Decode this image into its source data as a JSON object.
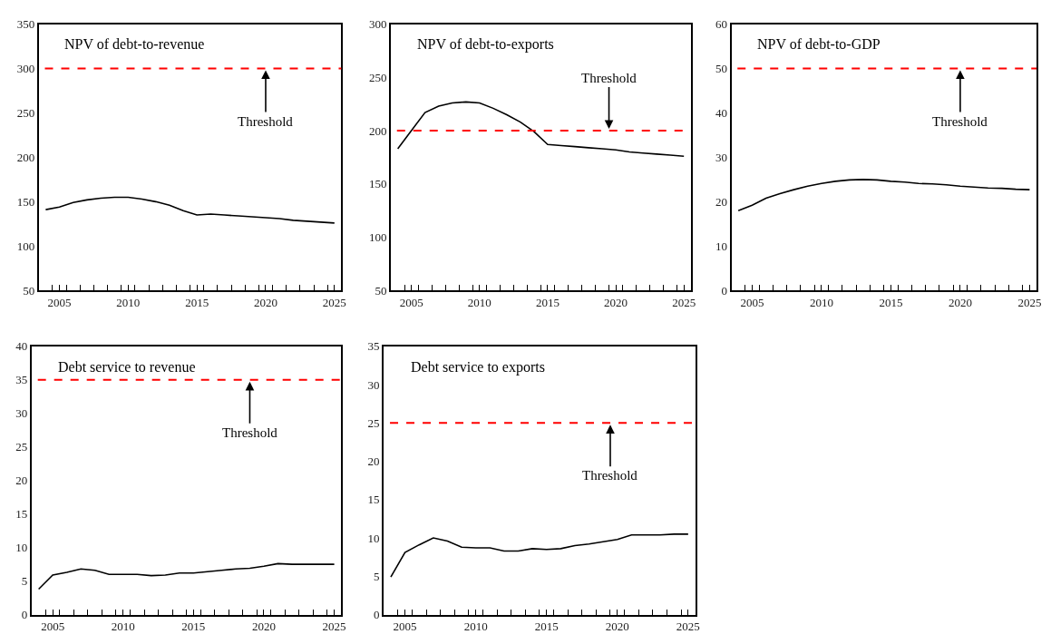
{
  "chart_data": [
    {
      "type": "line",
      "title": "NPV of debt-to-revenue",
      "x": [
        2004,
        2005,
        2006,
        2007,
        2008,
        2009,
        2010,
        2011,
        2012,
        2013,
        2014,
        2015,
        2016,
        2017,
        2018,
        2019,
        2020,
        2021,
        2022,
        2023,
        2024,
        2025
      ],
      "series": [
        {
          "color": "#000000",
          "values": [
            141,
            144,
            149,
            152,
            154,
            155,
            155,
            153,
            150,
            146,
            140,
            135,
            136,
            135,
            134,
            133,
            132,
            131,
            129,
            128,
            127,
            126
          ]
        }
      ],
      "xlim": [
        2003.5,
        2025.5
      ],
      "xticks": [
        {
          "value": 2004.5,
          "label": null
        },
        2005,
        {
          "value": 2005.5,
          "label": null
        },
        {
          "value": 2006.5,
          "label": null
        },
        {
          "value": 2007.5,
          "label": null
        },
        {
          "value": 2008.5,
          "label": null
        },
        {
          "value": 2009.5,
          "label": null
        },
        2010,
        {
          "value": 2010.5,
          "label": null
        },
        {
          "value": 2011.5,
          "label": null
        },
        {
          "value": 2012.5,
          "label": null
        },
        {
          "value": 2013.5,
          "label": null
        },
        {
          "value": 2014.5,
          "label": null
        },
        2015,
        {
          "value": 2015.5,
          "label": null
        },
        {
          "value": 2016.5,
          "label": null
        },
        {
          "value": 2017.5,
          "label": null
        },
        {
          "value": 2018.5,
          "label": null
        },
        {
          "value": 2019.5,
          "label": null
        },
        2020,
        {
          "value": 2020.5,
          "label": null
        },
        {
          "value": 2021.5,
          "label": null
        },
        {
          "value": 2022.5,
          "label": null
        },
        {
          "value": 2023.5,
          "label": null
        },
        {
          "value": 2024.5,
          "label": null
        },
        2025
      ],
      "ylim": [
        50,
        350
      ],
      "yticks": [
        50,
        100,
        150,
        200,
        250,
        300,
        350
      ],
      "ref_lines": [
        {
          "axis": "y",
          "value": 300,
          "color": "#ff0000",
          "line_style": "dashed"
        }
      ],
      "annotations": [
        {
          "text": "Threshold",
          "x": 2020,
          "y": 300
        }
      ]
    },
    {
      "type": "line",
      "title": "NPV of debt-to-exports",
      "x": [
        2004,
        2005,
        2006,
        2007,
        2008,
        2009,
        2010,
        2011,
        2012,
        2013,
        2014,
        2015,
        2016,
        2017,
        2018,
        2019,
        2020,
        2021,
        2022,
        2023,
        2024,
        2025
      ],
      "series": [
        {
          "color": "#000000",
          "values": [
            183,
            200,
            217,
            223,
            226,
            227,
            226,
            221,
            215,
            208,
            199,
            187,
            186,
            185,
            184,
            183,
            182,
            180,
            179,
            178,
            177,
            176
          ]
        }
      ],
      "xlim": [
        2003.5,
        2025.5
      ],
      "xticks": [
        {
          "value": 2004.5,
          "label": null
        },
        2005,
        {
          "value": 2005.5,
          "label": null
        },
        {
          "value": 2006.5,
          "label": null
        },
        {
          "value": 2007.5,
          "label": null
        },
        {
          "value": 2008.5,
          "label": null
        },
        {
          "value": 2009.5,
          "label": null
        },
        2010,
        {
          "value": 2010.5,
          "label": null
        },
        {
          "value": 2011.5,
          "label": null
        },
        {
          "value": 2012.5,
          "label": null
        },
        {
          "value": 2013.5,
          "label": null
        },
        {
          "value": 2014.5,
          "label": null
        },
        2015,
        {
          "value": 2015.5,
          "label": null
        },
        {
          "value": 2016.5,
          "label": null
        },
        {
          "value": 2017.5,
          "label": null
        },
        {
          "value": 2018.5,
          "label": null
        },
        {
          "value": 2019.5,
          "label": null
        },
        2020,
        {
          "value": 2020.5,
          "label": null
        },
        {
          "value": 2021.5,
          "label": null
        },
        {
          "value": 2022.5,
          "label": null
        },
        {
          "value": 2023.5,
          "label": null
        },
        {
          "value": 2024.5,
          "label": null
        },
        2025
      ],
      "ylim": [
        50,
        300
      ],
      "yticks": [
        50,
        100,
        150,
        200,
        250,
        300
      ],
      "ref_lines": [
        {
          "axis": "y",
          "value": 200,
          "color": "#ff0000",
          "line_style": "dashed"
        }
      ],
      "annotations": [
        {
          "text": "Threshold",
          "x": 2019.5,
          "y": 200
        }
      ]
    },
    {
      "type": "line",
      "title": "NPV of debt-to-GDP",
      "x": [
        2004,
        2005,
        2006,
        2007,
        2008,
        2009,
        2010,
        2011,
        2012,
        2013,
        2014,
        2015,
        2016,
        2017,
        2018,
        2019,
        2020,
        2021,
        2022,
        2023,
        2024,
        2025
      ],
      "series": [
        {
          "color": "#000000",
          "values": [
            18,
            19.2,
            20.8,
            21.8,
            22.7,
            23.5,
            24.1,
            24.6,
            24.9,
            25,
            24.9,
            24.6,
            24.4,
            24.1,
            24,
            23.8,
            23.5,
            23.3,
            23.1,
            23,
            22.8,
            22.7
          ]
        }
      ],
      "xlim": [
        2003.5,
        2025.5
      ],
      "xticks": [
        {
          "value": 2004.5,
          "label": null
        },
        2005,
        {
          "value": 2005.5,
          "label": null
        },
        {
          "value": 2006.5,
          "label": null
        },
        {
          "value": 2007.5,
          "label": null
        },
        {
          "value": 2008.5,
          "label": null
        },
        {
          "value": 2009.5,
          "label": null
        },
        2010,
        {
          "value": 2010.5,
          "label": null
        },
        {
          "value": 2011.5,
          "label": null
        },
        {
          "value": 2012.5,
          "label": null
        },
        {
          "value": 2013.5,
          "label": null
        },
        {
          "value": 2014.5,
          "label": null
        },
        2015,
        {
          "value": 2015.5,
          "label": null
        },
        {
          "value": 2016.5,
          "label": null
        },
        {
          "value": 2017.5,
          "label": null
        },
        {
          "value": 2018.5,
          "label": null
        },
        {
          "value": 2019.5,
          "label": null
        },
        2020,
        {
          "value": 2020.5,
          "label": null
        },
        {
          "value": 2021.5,
          "label": null
        },
        {
          "value": 2022.5,
          "label": null
        },
        {
          "value": 2023.5,
          "label": null
        },
        {
          "value": 2024.5,
          "label": null
        },
        2025
      ],
      "ylim": [
        0,
        60
      ],
      "yticks": [
        0,
        10,
        20,
        30,
        40,
        50,
        60
      ],
      "ref_lines": [
        {
          "axis": "y",
          "value": 50,
          "color": "#ff0000",
          "line_style": "dashed"
        }
      ],
      "annotations": [
        {
          "text": "Threshold",
          "x": 2020,
          "y": 50
        }
      ]
    },
    {
      "type": "line",
      "title": "Debt service to revenue",
      "x": [
        2004,
        2005,
        2006,
        2007,
        2008,
        2009,
        2010,
        2011,
        2012,
        2013,
        2014,
        2015,
        2016,
        2017,
        2018,
        2019,
        2020,
        2021,
        2022,
        2023,
        2024,
        2025
      ],
      "series": [
        {
          "color": "#000000",
          "values": [
            3.8,
            5.9,
            6.3,
            6.8,
            6.6,
            6.0,
            6.0,
            6.0,
            5.8,
            5.9,
            6.2,
            6.2,
            6.4,
            6.6,
            6.8,
            6.9,
            7.2,
            7.6,
            7.5,
            7.5,
            7.5,
            7.5
          ]
        }
      ],
      "xlim": [
        2003.5,
        2025.5
      ],
      "xticks": [
        {
          "value": 2004.5,
          "label": null
        },
        2005,
        {
          "value": 2005.5,
          "label": null
        },
        {
          "value": 2006.5,
          "label": null
        },
        {
          "value": 2007.5,
          "label": null
        },
        {
          "value": 2008.5,
          "label": null
        },
        {
          "value": 2009.5,
          "label": null
        },
        2010,
        {
          "value": 2010.5,
          "label": null
        },
        {
          "value": 2011.5,
          "label": null
        },
        {
          "value": 2012.5,
          "label": null
        },
        {
          "value": 2013.5,
          "label": null
        },
        {
          "value": 2014.5,
          "label": null
        },
        2015,
        {
          "value": 2015.5,
          "label": null
        },
        {
          "value": 2016.5,
          "label": null
        },
        {
          "value": 2017.5,
          "label": null
        },
        {
          "value": 2018.5,
          "label": null
        },
        {
          "value": 2019.5,
          "label": null
        },
        2020,
        {
          "value": 2020.5,
          "label": null
        },
        {
          "value": 2021.5,
          "label": null
        },
        {
          "value": 2022.5,
          "label": null
        },
        {
          "value": 2023.5,
          "label": null
        },
        {
          "value": 2024.5,
          "label": null
        },
        2025
      ],
      "ylim": [
        0,
        40
      ],
      "yticks": [
        0,
        5,
        10,
        15,
        20,
        25,
        30,
        35,
        40
      ],
      "ref_lines": [
        {
          "axis": "y",
          "value": 35,
          "color": "#ff0000",
          "line_style": "dashed"
        }
      ],
      "annotations": [
        {
          "text": "Threshold",
          "x": 2019,
          "y": 35
        }
      ]
    },
    {
      "type": "line",
      "title": "Debt service to exports",
      "x": [
        2004,
        2005,
        2006,
        2007,
        2008,
        2009,
        2010,
        2011,
        2012,
        2013,
        2014,
        2015,
        2016,
        2017,
        2018,
        2019,
        2020,
        2021,
        2022,
        2023,
        2024,
        2025
      ],
      "series": [
        {
          "color": "#000000",
          "values": [
            4.9,
            8.1,
            9.1,
            10.0,
            9.6,
            8.8,
            8.7,
            8.7,
            8.3,
            8.3,
            8.6,
            8.5,
            8.6,
            9.0,
            9.2,
            9.5,
            9.8,
            10.4,
            10.4,
            10.4,
            10.5,
            10.5
          ]
        }
      ],
      "xlim": [
        2003.5,
        2025.5
      ],
      "xticks": [
        {
          "value": 2004.5,
          "label": null
        },
        2005,
        {
          "value": 2005.5,
          "label": null
        },
        {
          "value": 2006.5,
          "label": null
        },
        {
          "value": 2007.5,
          "label": null
        },
        {
          "value": 2008.5,
          "label": null
        },
        {
          "value": 2009.5,
          "label": null
        },
        2010,
        {
          "value": 2010.5,
          "label": null
        },
        {
          "value": 2011.5,
          "label": null
        },
        {
          "value": 2012.5,
          "label": null
        },
        {
          "value": 2013.5,
          "label": null
        },
        {
          "value": 2014.5,
          "label": null
        },
        2015,
        {
          "value": 2015.5,
          "label": null
        },
        {
          "value": 2016.5,
          "label": null
        },
        {
          "value": 2017.5,
          "label": null
        },
        {
          "value": 2018.5,
          "label": null
        },
        {
          "value": 2019.5,
          "label": null
        },
        2020,
        {
          "value": 2020.5,
          "label": null
        },
        {
          "value": 2021.5,
          "label": null
        },
        {
          "value": 2022.5,
          "label": null
        },
        {
          "value": 2023.5,
          "label": null
        },
        {
          "value": 2024.5,
          "label": null
        },
        2025
      ],
      "ylim": [
        0,
        35
      ],
      "yticks": [
        0,
        5,
        10,
        15,
        20,
        25,
        30,
        35
      ],
      "ref_lines": [
        {
          "axis": "y",
          "value": 25,
          "color": "#ff0000",
          "line_style": "dashed"
        }
      ],
      "annotations": [
        {
          "text": "Threshold",
          "x": 2019.5,
          "y": 25
        }
      ]
    }
  ]
}
